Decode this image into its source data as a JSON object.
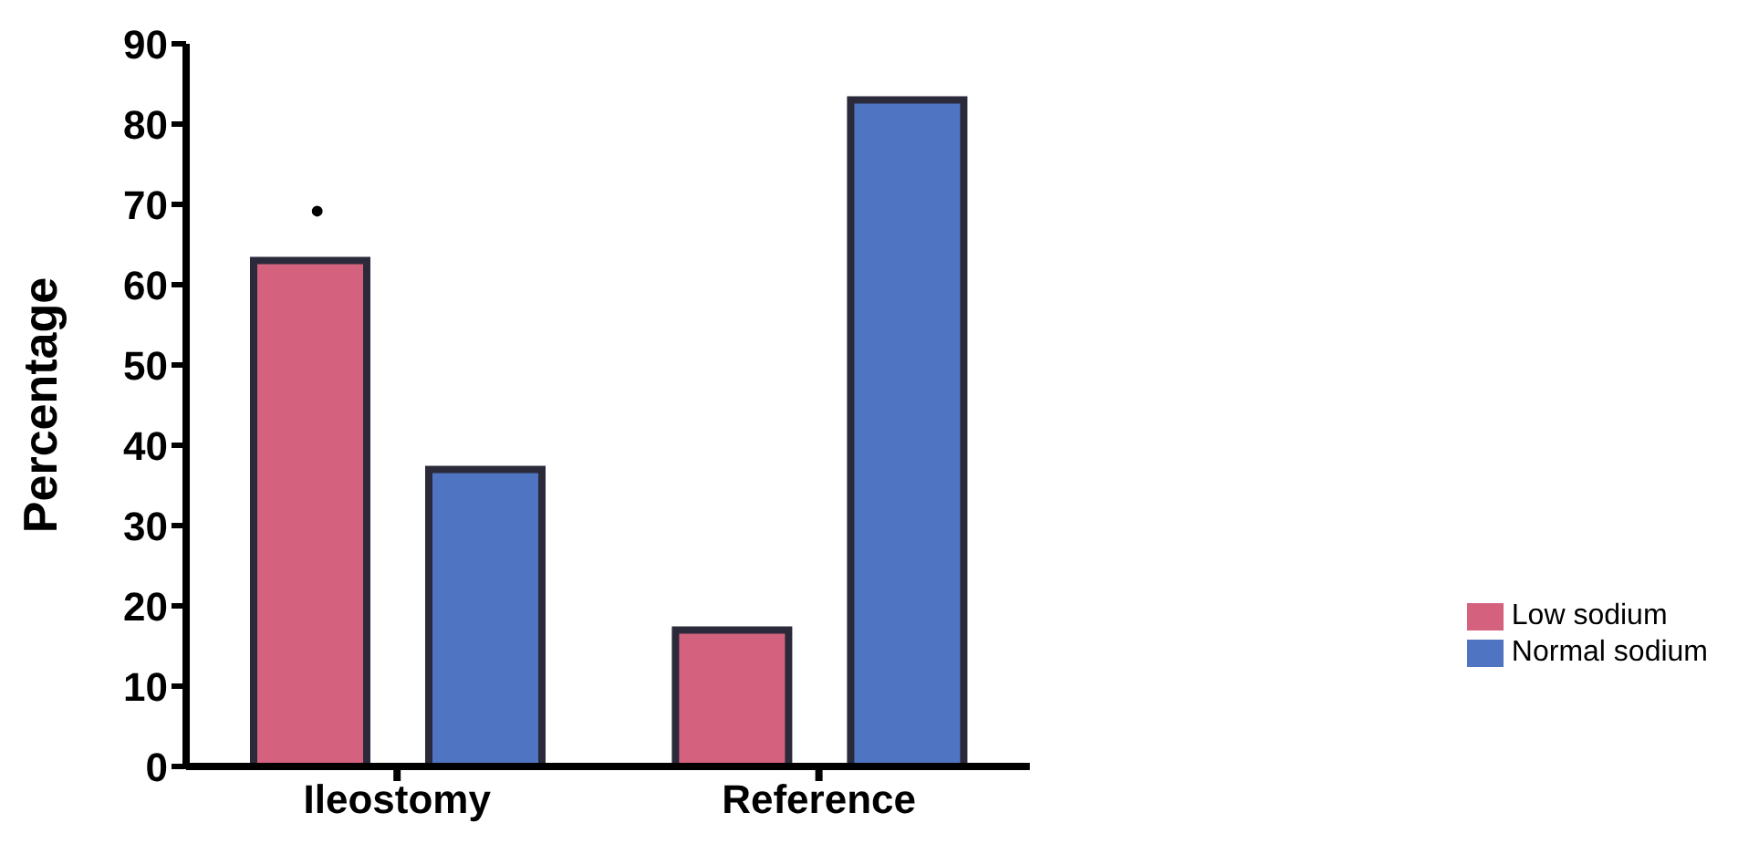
{
  "chart_data": {
    "type": "bar",
    "ylabel": "Percentage",
    "categories": [
      "Ileostomy",
      "Reference"
    ],
    "series": [
      {
        "name": "Low sodium",
        "color": "#d4627f",
        "values": [
          63,
          17
        ]
      },
      {
        "name": "Normal sodium",
        "color": "#4f75c2",
        "values": [
          37,
          83
        ]
      }
    ],
    "ylim": [
      0,
      90
    ],
    "yticks": [
      0,
      10,
      20,
      30,
      40,
      50,
      60,
      70,
      80,
      90
    ],
    "legend": "right",
    "grid": false,
    "annotations": [
      "•"
    ]
  }
}
